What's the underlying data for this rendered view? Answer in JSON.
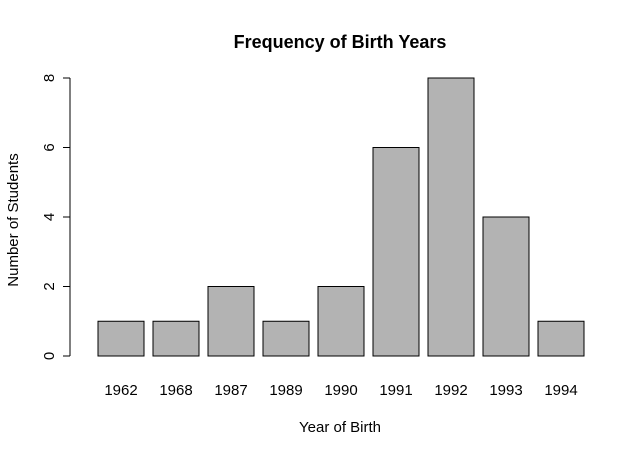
{
  "chart_data": {
    "type": "bar",
    "title": "Frequency of Birth Years",
    "xlabel": "Year of Birth",
    "ylabel": "Number of Students",
    "categories": [
      "1962",
      "1968",
      "1987",
      "1989",
      "1990",
      "1991",
      "1992",
      "1993",
      "1994"
    ],
    "values": [
      1,
      1,
      2,
      1,
      2,
      6,
      8,
      4,
      1
    ],
    "ylim": [
      0,
      8
    ],
    "yticks": [
      "0",
      "2",
      "4",
      "6",
      "8"
    ],
    "bar_color": "#b3b3b3",
    "grid": false,
    "legend": "none"
  }
}
